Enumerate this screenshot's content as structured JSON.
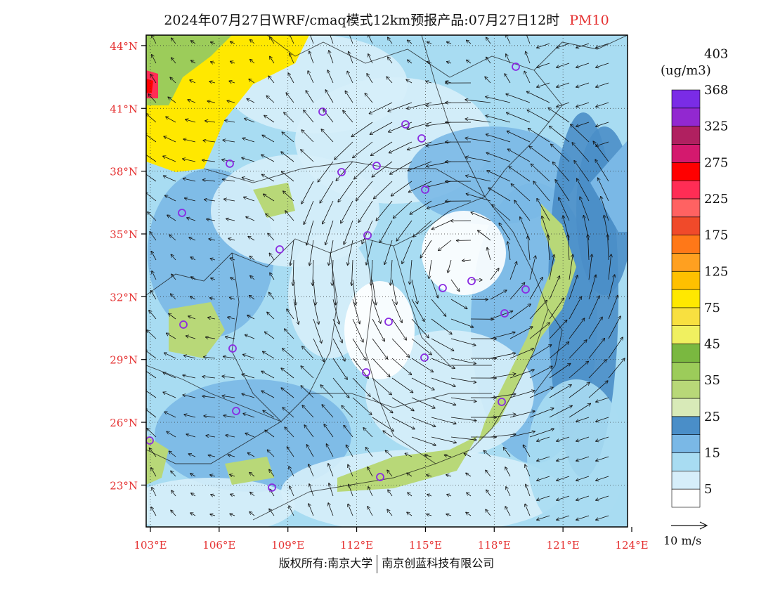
{
  "title": {
    "text": "2024年07月27日WRF/cmaq模式12km预报产品:07月27日12时",
    "pollutant": "PM10",
    "pollutant_color": "#e53030"
  },
  "map": {
    "lat_labels": [
      "44°N",
      "41°N",
      "38°N",
      "35°N",
      "32°N",
      "29°N",
      "26°N",
      "23°N"
    ],
    "lon_labels": [
      "103°E",
      "106°E",
      "109°E",
      "112°E",
      "115°E",
      "118°E",
      "121°E",
      "124°E"
    ],
    "label_color": "#e53030",
    "lat_range": [
      21.0,
      44.5
    ],
    "lon_range": [
      103.0,
      124.0
    ],
    "cyclone_center": {
      "lon": 117.0,
      "lat": 33.5
    }
  },
  "legend": {
    "unit": "(ug/m3)",
    "colors": [
      "#ffffff",
      "#d6eefa",
      "#a8dcf2",
      "#7ab8e6",
      "#4a8ec8",
      "#d8eab8",
      "#b8d878",
      "#9ccc5a",
      "#7ab840",
      "#f0f060",
      "#f8e040",
      "#ffe800",
      "#ffc000",
      "#ffa020",
      "#ff7818",
      "#f04a2a",
      "#ff6262",
      "#ff2d55",
      "#ff0000",
      "#d4196e",
      "#b02060",
      "#9228d0",
      "#7a2ce6"
    ],
    "labels": [
      "5",
      "15",
      "25",
      "35",
      "45",
      "75",
      "125",
      "175",
      "225",
      "275",
      "325",
      "368",
      "403"
    ]
  },
  "wind_scale": {
    "label": "10 m/s"
  },
  "footer": {
    "left": "版权所有:南京大学",
    "right": "南京创蓝科技有限公司"
  }
}
